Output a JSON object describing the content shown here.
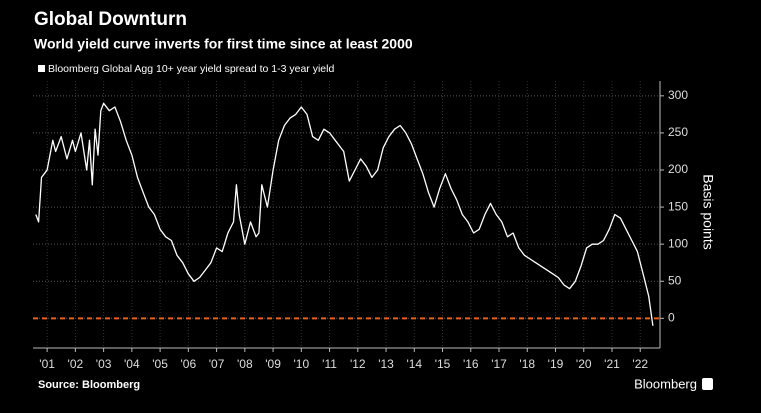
{
  "chart_data": {
    "type": "line",
    "title": "Global Downturn",
    "subtitle": "World yield curve inverts for first time since at least 2000",
    "y_label": "Basis points",
    "source": "Source: Bloomberg",
    "brand": "Bloomberg",
    "x": [
      2000.6,
      2000.7,
      2000.8,
      2000.9,
      2001.0,
      2001.2,
      2001.3,
      2001.5,
      2001.7,
      2001.9,
      2002.0,
      2002.2,
      2002.4,
      2002.5,
      2002.6,
      2002.7,
      2002.8,
      2002.9,
      2003.0,
      2003.2,
      2003.4,
      2003.6,
      2003.8,
      2004.0,
      2004.2,
      2004.4,
      2004.6,
      2004.8,
      2005.0,
      2005.2,
      2005.4,
      2005.6,
      2005.8,
      2006.0,
      2006.2,
      2006.4,
      2006.6,
      2006.8,
      2007.0,
      2007.2,
      2007.4,
      2007.6,
      2007.7,
      2007.8,
      2008.0,
      2008.2,
      2008.4,
      2008.5,
      2008.6,
      2008.8,
      2009.0,
      2009.2,
      2009.4,
      2009.6,
      2009.8,
      2010.0,
      2010.2,
      2010.4,
      2010.6,
      2010.8,
      2011.0,
      2011.2,
      2011.5,
      2011.7,
      2011.9,
      2012.1,
      2012.3,
      2012.5,
      2012.7,
      2012.9,
      2013.1,
      2013.3,
      2013.5,
      2013.7,
      2013.9,
      2014.1,
      2014.3,
      2014.5,
      2014.7,
      2014.9,
      2015.1,
      2015.3,
      2015.5,
      2015.7,
      2015.9,
      2016.1,
      2016.3,
      2016.5,
      2016.7,
      2016.9,
      2017.1,
      2017.3,
      2017.5,
      2017.7,
      2017.9,
      2018.1,
      2018.3,
      2018.5,
      2018.7,
      2018.9,
      2019.1,
      2019.3,
      2019.5,
      2019.7,
      2019.9,
      2020.1,
      2020.3,
      2020.5,
      2020.7,
      2020.9,
      2021.1,
      2021.3,
      2021.5,
      2021.7,
      2021.9,
      2022.1,
      2022.3,
      2022.45
    ],
    "series": [
      {
        "name": "Bloomberg Global Agg 10+ year yield spread to 1-3 year yield",
        "color": "#ffffff",
        "values": [
          140,
          130,
          190,
          195,
          200,
          240,
          225,
          245,
          215,
          240,
          225,
          250,
          200,
          240,
          180,
          255,
          220,
          280,
          290,
          280,
          285,
          265,
          240,
          220,
          190,
          170,
          150,
          140,
          120,
          110,
          105,
          85,
          75,
          60,
          50,
          55,
          65,
          75,
          95,
          90,
          115,
          130,
          180,
          140,
          100,
          130,
          110,
          115,
          180,
          150,
          200,
          240,
          260,
          270,
          275,
          285,
          275,
          245,
          240,
          255,
          250,
          240,
          225,
          185,
          200,
          215,
          205,
          190,
          200,
          230,
          245,
          255,
          260,
          250,
          235,
          215,
          195,
          170,
          150,
          175,
          195,
          175,
          160,
          140,
          130,
          115,
          120,
          140,
          155,
          140,
          130,
          110,
          115,
          95,
          85,
          80,
          75,
          70,
          65,
          60,
          55,
          45,
          40,
          50,
          70,
          95,
          100,
          100,
          105,
          120,
          140,
          135,
          120,
          105,
          90,
          60,
          30,
          -10
        ]
      }
    ],
    "reference_line": {
      "value": 0,
      "color": "#e8601c"
    },
    "xlim": [
      2000.5,
      2022.7
    ],
    "xticks": [
      {
        "value": 2001,
        "label": "'01"
      },
      {
        "value": 2002,
        "label": "'02"
      },
      {
        "value": 2003,
        "label": "'03"
      },
      {
        "value": 2004,
        "label": "'04"
      },
      {
        "value": 2005,
        "label": "'05"
      },
      {
        "value": 2006,
        "label": "'06"
      },
      {
        "value": 2007,
        "label": "'07"
      },
      {
        "value": 2008,
        "label": "'08"
      },
      {
        "value": 2009,
        "label": "'09"
      },
      {
        "value": 2010,
        "label": "'10"
      },
      {
        "value": 2011,
        "label": "'11"
      },
      {
        "value": 2012,
        "label": "'12"
      },
      {
        "value": 2013,
        "label": "'13"
      },
      {
        "value": 2014,
        "label": "'14"
      },
      {
        "value": 2015,
        "label": "'15"
      },
      {
        "value": 2016,
        "label": "'16"
      },
      {
        "value": 2017,
        "label": "'17"
      },
      {
        "value": 2018,
        "label": "'18"
      },
      {
        "value": 2019,
        "label": "'19"
      },
      {
        "value": 2020,
        "label": "'20"
      },
      {
        "value": 2021,
        "label": "'21"
      },
      {
        "value": 2022,
        "label": "'22"
      }
    ],
    "ylim": [
      -40,
      320
    ],
    "yticks": [
      0,
      50,
      100,
      150,
      200,
      250,
      300
    ],
    "grid": true
  }
}
